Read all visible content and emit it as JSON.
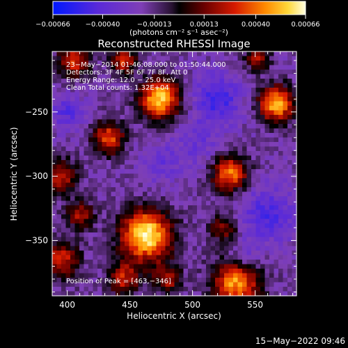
{
  "chart_data": {
    "type": "heatmap",
    "title": "Reconstructed RHESSI Image",
    "xlabel": "Heliocentric X (arcsec)",
    "ylabel": "Heliocentric Y (arcsec)",
    "xlim": [
      388,
      583
    ],
    "ylim": [
      -393,
      -203
    ],
    "x_ticks": [
      {
        "value": 400,
        "label": "400"
      },
      {
        "value": 450,
        "label": "450"
      },
      {
        "value": 500,
        "label": "500"
      },
      {
        "value": 550,
        "label": "550"
      }
    ],
    "y_ticks": [
      {
        "value": -250,
        "label": "−250"
      },
      {
        "value": -300,
        "label": "−300"
      },
      {
        "value": -350,
        "label": "−350"
      }
    ],
    "colorbar": {
      "ticks": [
        {
          "value": -0.00066,
          "label": "−0.00066"
        },
        {
          "value": -0.0004,
          "label": "−0.00040"
        },
        {
          "value": -0.00013,
          "label": "−0.00013"
        },
        {
          "value": 0.00013,
          "label": "0.00013"
        },
        {
          "value": 0.0004,
          "label": "0.00040"
        },
        {
          "value": 0.00066,
          "label": "0.00066"
        }
      ],
      "range": [
        -0.00066,
        0.00066
      ],
      "unit_label": "(photons cm⁻² s⁻¹ asec⁻²)"
    },
    "annotations": [
      "23−May−2014 01:46:08.000 to 01:50:44.000",
      "Detectors: 3F 4F 5F 6F 7F 8F, Att 0",
      "Energy Range: 12.0 − 25.0 keV",
      "Clean     Total counts: 1.32E+04"
    ],
    "peak_label": "Position of Peak = [463,−346]",
    "peak": [
      463,
      -346
    ],
    "sources": [
      {
        "x": 463,
        "y": -346,
        "peak": 0.00066,
        "r": 14
      },
      {
        "x": 474,
        "y": -240,
        "peak": 0.00058,
        "r": 11
      },
      {
        "x": 567,
        "y": -244,
        "peak": 0.00052,
        "r": 10
      },
      {
        "x": 535,
        "y": -382,
        "peak": 0.0005,
        "r": 13
      },
      {
        "x": 433,
        "y": -270,
        "peak": 0.00035,
        "r": 9
      },
      {
        "x": 530,
        "y": -298,
        "peak": 0.00042,
        "r": 10
      },
      {
        "x": 395,
        "y": -300,
        "peak": 0.00028,
        "r": 9
      },
      {
        "x": 395,
        "y": -365,
        "peak": 0.0003,
        "r": 10
      },
      {
        "x": 405,
        "y": -210,
        "peak": 0.0003,
        "r": 9
      },
      {
        "x": 445,
        "y": -210,
        "peak": 0.0003,
        "r": 7
      },
      {
        "x": 552,
        "y": -208,
        "peak": 0.0002,
        "r": 7
      },
      {
        "x": 445,
        "y": -380,
        "peak": 0.00025,
        "r": 9
      },
      {
        "x": 480,
        "y": -380,
        "peak": 0.00022,
        "r": 8
      },
      {
        "x": 525,
        "y": -340,
        "peak": 0.00018,
        "r": 8
      },
      {
        "x": 410,
        "y": -330,
        "peak": 0.0002,
        "r": 8
      }
    ],
    "troughs": [
      {
        "x": 520,
        "y": -240,
        "depth": -0.00035,
        "r": 14
      },
      {
        "x": 560,
        "y": -330,
        "depth": -0.00032,
        "r": 16
      },
      {
        "x": 540,
        "y": -365,
        "depth": -0.00028,
        "r": 9
      },
      {
        "x": 475,
        "y": -290,
        "depth": -0.00022,
        "r": 12
      },
      {
        "x": 400,
        "y": -250,
        "depth": -0.00028,
        "r": 10
      },
      {
        "x": 505,
        "y": -275,
        "depth": -0.0002,
        "r": 12
      }
    ]
  },
  "footer": {
    "timestamp": "15−May−2022 09:46"
  }
}
